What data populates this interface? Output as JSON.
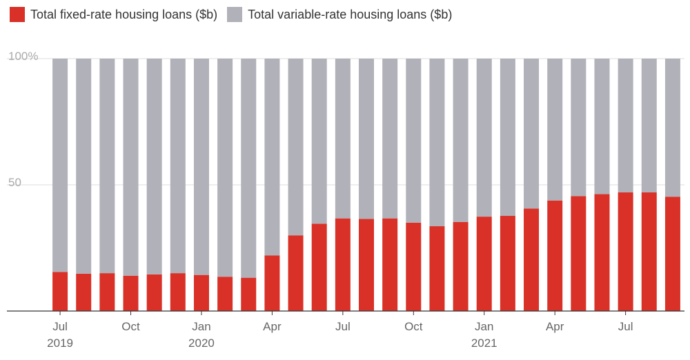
{
  "chart_data": {
    "type": "bar",
    "stacked": true,
    "percent_stacked": true,
    "series": [
      {
        "name": "Total fixed-rate housing loans ($b)",
        "color": "#d93127",
        "values": [
          15.5,
          14.8,
          15.0,
          14.0,
          14.5,
          15.0,
          14.3,
          13.6,
          13.2,
          22.0,
          30.0,
          34.6,
          36.7,
          36.5,
          36.7,
          35.0,
          33.6,
          35.3,
          37.4,
          37.7,
          40.6,
          43.8,
          45.5,
          46.3,
          47.0,
          47.0,
          45.3
        ]
      },
      {
        "name": "Total variable-rate housing loans ($b)",
        "color": "#b1b1b9",
        "values": [
          84.5,
          85.2,
          85.0,
          86.0,
          85.5,
          85.0,
          85.7,
          86.4,
          86.8,
          78.0,
          70.0,
          65.4,
          63.3,
          63.5,
          63.3,
          65.0,
          66.4,
          64.7,
          62.6,
          62.3,
          59.4,
          56.2,
          54.5,
          53.7,
          53.0,
          53.0,
          54.7
        ]
      }
    ],
    "x_tick_labels": [
      {
        "index": 0,
        "month": "Jul",
        "year": "2019"
      },
      {
        "index": 3,
        "month": "Oct",
        "year": ""
      },
      {
        "index": 6,
        "month": "Jan",
        "year": "2020"
      },
      {
        "index": 9,
        "month": "Apr",
        "year": ""
      },
      {
        "index": 12,
        "month": "Jul",
        "year": ""
      },
      {
        "index": 15,
        "month": "Oct",
        "year": ""
      },
      {
        "index": 18,
        "month": "Jan",
        "year": "2021"
      },
      {
        "index": 21,
        "month": "Apr",
        "year": ""
      },
      {
        "index": 24,
        "month": "Jul",
        "year": ""
      }
    ],
    "y_ticks": [
      {
        "value": 50,
        "label": "50"
      },
      {
        "value": 100,
        "label": "100%"
      }
    ],
    "ylim": [
      0,
      100
    ],
    "grid": true,
    "legend_position": "top-left"
  }
}
